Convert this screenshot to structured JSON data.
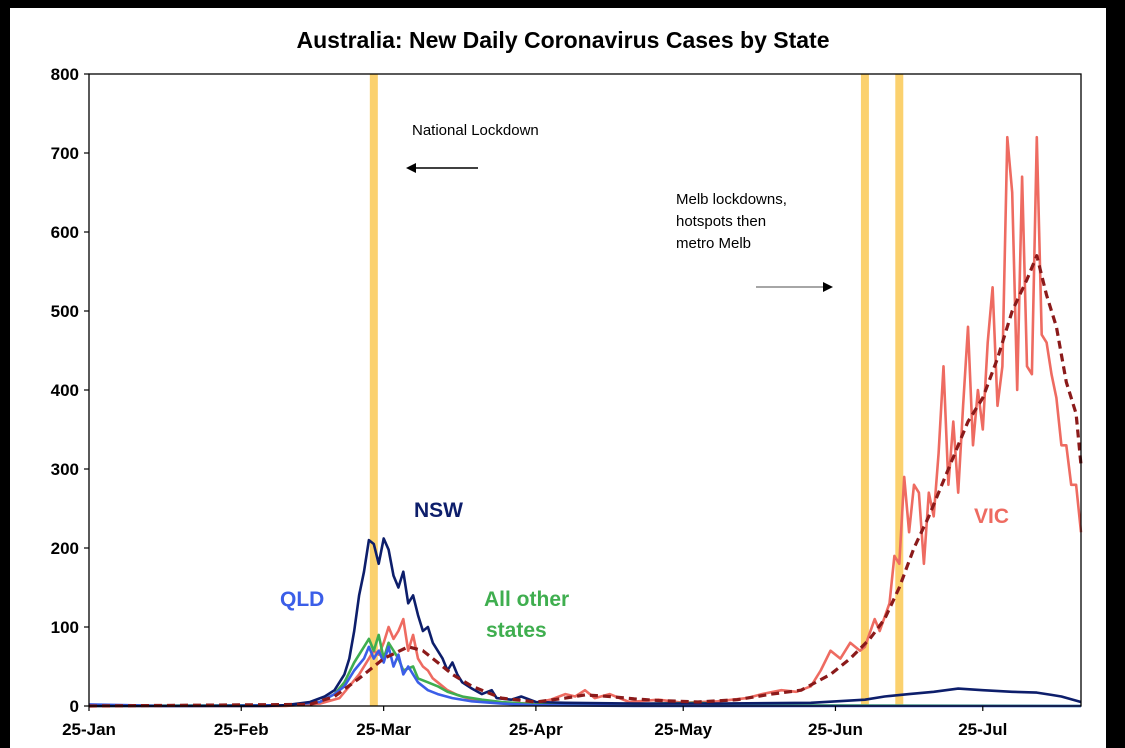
{
  "chart_data": {
    "type": "line",
    "title": "Australia: New Daily Coronavirus Cases by State",
    "xlabel": "",
    "ylabel": "",
    "x_ticks": [
      "25-Jan",
      "25-Feb",
      "25-Mar",
      "25-Apr",
      "25-May",
      "25-Jun",
      "25-Jul"
    ],
    "x_range": [
      "2020-01-25",
      "2020-08-14"
    ],
    "ylim": [
      0,
      800
    ],
    "y_ticks": [
      0,
      100,
      200,
      300,
      400,
      500,
      600,
      700,
      800
    ],
    "grid": false,
    "legend": "none (series labelled directly on chart)",
    "colors": {
      "NSW": "#0d1e6b",
      "VIC": "#ee6b61",
      "VIC_avg": "#8b1a1a",
      "QLD": "#3b5ee8",
      "All other states": "#3fae4f",
      "event_line": "#fbd16e"
    },
    "event_lines": [
      "2020-03-23",
      "2020-07-01",
      "2020-07-08"
    ],
    "annotations": [
      {
        "text": "National Lockdown",
        "arrow": "left"
      },
      {
        "text": "Melb lockdowns,",
        "arrow": "none"
      },
      {
        "text": "hotspots then",
        "arrow": "none"
      },
      {
        "text": "metro Melb",
        "arrow": "right"
      }
    ],
    "series_labels": [
      {
        "series": "NSW",
        "lines": [
          "NSW"
        ]
      },
      {
        "series": "QLD",
        "lines": [
          "QLD"
        ]
      },
      {
        "series": "All other states",
        "lines": [
          "All other",
          "states"
        ]
      },
      {
        "series": "VIC",
        "lines": [
          "VIC"
        ]
      }
    ],
    "series": [
      {
        "name": "NSW",
        "style": "solid",
        "points": [
          [
            "2020-01-25",
            0
          ],
          [
            "2020-03-01",
            0
          ],
          [
            "2020-03-05",
            1
          ],
          [
            "2020-03-10",
            5
          ],
          [
            "2020-03-13",
            12
          ],
          [
            "2020-03-15",
            20
          ],
          [
            "2020-03-17",
            40
          ],
          [
            "2020-03-18",
            60
          ],
          [
            "2020-03-19",
            95
          ],
          [
            "2020-03-20",
            140
          ],
          [
            "2020-03-21",
            170
          ],
          [
            "2020-03-22",
            210
          ],
          [
            "2020-03-23",
            205
          ],
          [
            "2020-03-24",
            180
          ],
          [
            "2020-03-25",
            212
          ],
          [
            "2020-03-26",
            198
          ],
          [
            "2020-03-27",
            165
          ],
          [
            "2020-03-28",
            150
          ],
          [
            "2020-03-29",
            170
          ],
          [
            "2020-03-30",
            130
          ],
          [
            "2020-03-31",
            140
          ],
          [
            "2020-04-01",
            115
          ],
          [
            "2020-04-02",
            95
          ],
          [
            "2020-04-03",
            100
          ],
          [
            "2020-04-04",
            80
          ],
          [
            "2020-04-05",
            70
          ],
          [
            "2020-04-06",
            60
          ],
          [
            "2020-04-07",
            45
          ],
          [
            "2020-04-08",
            55
          ],
          [
            "2020-04-09",
            40
          ],
          [
            "2020-04-10",
            30
          ],
          [
            "2020-04-12",
            22
          ],
          [
            "2020-04-14",
            15
          ],
          [
            "2020-04-16",
            20
          ],
          [
            "2020-04-17",
            10
          ],
          [
            "2020-04-20",
            8
          ],
          [
            "2020-04-22",
            12
          ],
          [
            "2020-04-25",
            5
          ],
          [
            "2020-05-01",
            4
          ],
          [
            "2020-05-15",
            3
          ],
          [
            "2020-06-01",
            3
          ],
          [
            "2020-06-20",
            4
          ],
          [
            "2020-07-01",
            8
          ],
          [
            "2020-07-05",
            12
          ],
          [
            "2020-07-10",
            15
          ],
          [
            "2020-07-15",
            18
          ],
          [
            "2020-07-20",
            22
          ],
          [
            "2020-07-25",
            20
          ],
          [
            "2020-07-31",
            18
          ],
          [
            "2020-08-05",
            17
          ],
          [
            "2020-08-08",
            14
          ],
          [
            "2020-08-10",
            12
          ],
          [
            "2020-08-14",
            5
          ]
        ]
      },
      {
        "name": "VIC",
        "style": "solid",
        "points": [
          [
            "2020-01-25",
            0
          ],
          [
            "2020-03-05",
            0
          ],
          [
            "2020-03-12",
            3
          ],
          [
            "2020-03-16",
            10
          ],
          [
            "2020-03-18",
            25
          ],
          [
            "2020-03-20",
            40
          ],
          [
            "2020-03-22",
            60
          ],
          [
            "2020-03-23",
            70
          ],
          [
            "2020-03-24",
            65
          ],
          [
            "2020-03-25",
            80
          ],
          [
            "2020-03-26",
            100
          ],
          [
            "2020-03-27",
            85
          ],
          [
            "2020-03-28",
            95
          ],
          [
            "2020-03-29",
            110
          ],
          [
            "2020-03-30",
            70
          ],
          [
            "2020-03-31",
            90
          ],
          [
            "2020-04-01",
            60
          ],
          [
            "2020-04-02",
            50
          ],
          [
            "2020-04-03",
            45
          ],
          [
            "2020-04-04",
            35
          ],
          [
            "2020-04-05",
            30
          ],
          [
            "2020-04-07",
            20
          ],
          [
            "2020-04-09",
            14
          ],
          [
            "2020-04-12",
            8
          ],
          [
            "2020-04-15",
            5
          ],
          [
            "2020-04-20",
            3
          ],
          [
            "2020-04-25",
            4
          ],
          [
            "2020-04-28",
            8
          ],
          [
            "2020-05-01",
            15
          ],
          [
            "2020-05-03",
            12
          ],
          [
            "2020-05-05",
            20
          ],
          [
            "2020-05-07",
            10
          ],
          [
            "2020-05-10",
            15
          ],
          [
            "2020-05-14",
            5
          ],
          [
            "2020-05-20",
            8
          ],
          [
            "2020-05-25",
            4
          ],
          [
            "2020-06-01",
            6
          ],
          [
            "2020-06-07",
            10
          ],
          [
            "2020-06-10",
            15
          ],
          [
            "2020-06-14",
            20
          ],
          [
            "2020-06-17",
            18
          ],
          [
            "2020-06-20",
            25
          ],
          [
            "2020-06-22",
            45
          ],
          [
            "2020-06-24",
            70
          ],
          [
            "2020-06-26",
            60
          ],
          [
            "2020-06-28",
            80
          ],
          [
            "2020-06-30",
            70
          ],
          [
            "2020-07-01",
            75
          ],
          [
            "2020-07-03",
            110
          ],
          [
            "2020-07-04",
            95
          ],
          [
            "2020-07-06",
            130
          ],
          [
            "2020-07-07",
            190
          ],
          [
            "2020-07-08",
            180
          ],
          [
            "2020-07-09",
            290
          ],
          [
            "2020-07-10",
            220
          ],
          [
            "2020-07-11",
            280
          ],
          [
            "2020-07-12",
            270
          ],
          [
            "2020-07-13",
            180
          ],
          [
            "2020-07-14",
            270
          ],
          [
            "2020-07-15",
            240
          ],
          [
            "2020-07-16",
            320
          ],
          [
            "2020-07-17",
            430
          ],
          [
            "2020-07-18",
            280
          ],
          [
            "2020-07-19",
            360
          ],
          [
            "2020-07-20",
            270
          ],
          [
            "2020-07-21",
            380
          ],
          [
            "2020-07-22",
            480
          ],
          [
            "2020-07-23",
            330
          ],
          [
            "2020-07-24",
            400
          ],
          [
            "2020-07-25",
            350
          ],
          [
            "2020-07-26",
            460
          ],
          [
            "2020-07-27",
            530
          ],
          [
            "2020-07-28",
            380
          ],
          [
            "2020-07-29",
            430
          ],
          [
            "2020-07-30",
            720
          ],
          [
            "2020-07-31",
            650
          ],
          [
            "2020-08-01",
            400
          ],
          [
            "2020-08-02",
            670
          ],
          [
            "2020-08-03",
            430
          ],
          [
            "2020-08-04",
            420
          ],
          [
            "2020-08-05",
            720
          ],
          [
            "2020-08-06",
            470
          ],
          [
            "2020-08-07",
            460
          ],
          [
            "2020-08-08",
            420
          ],
          [
            "2020-08-09",
            390
          ],
          [
            "2020-08-10",
            330
          ],
          [
            "2020-08-11",
            330
          ],
          [
            "2020-08-12",
            280
          ],
          [
            "2020-08-13",
            280
          ],
          [
            "2020-08-14",
            220
          ]
        ]
      },
      {
        "name": "VIC 7-day average",
        "style": "dashed",
        "points": [
          [
            "2020-01-25",
            0
          ],
          [
            "2020-03-10",
            2
          ],
          [
            "2020-03-15",
            12
          ],
          [
            "2020-03-20",
            35
          ],
          [
            "2020-03-25",
            60
          ],
          [
            "2020-03-30",
            75
          ],
          [
            "2020-04-02",
            70
          ],
          [
            "2020-04-05",
            55
          ],
          [
            "2020-04-08",
            40
          ],
          [
            "2020-04-12",
            25
          ],
          [
            "2020-04-18",
            10
          ],
          [
            "2020-04-25",
            5
          ],
          [
            "2020-05-01",
            10
          ],
          [
            "2020-05-05",
            14
          ],
          [
            "2020-05-10",
            12
          ],
          [
            "2020-05-15",
            9
          ],
          [
            "2020-05-20",
            7
          ],
          [
            "2020-05-28",
            5
          ],
          [
            "2020-06-05",
            8
          ],
          [
            "2020-06-12",
            15
          ],
          [
            "2020-06-18",
            20
          ],
          [
            "2020-06-24",
            40
          ],
          [
            "2020-06-28",
            60
          ],
          [
            "2020-07-02",
            85
          ],
          [
            "2020-07-05",
            110
          ],
          [
            "2020-07-08",
            150
          ],
          [
            "2020-07-11",
            200
          ],
          [
            "2020-07-14",
            240
          ],
          [
            "2020-07-18",
            300
          ],
          [
            "2020-07-22",
            360
          ],
          [
            "2020-07-25",
            390
          ],
          [
            "2020-07-28",
            440
          ],
          [
            "2020-07-31",
            500
          ],
          [
            "2020-08-03",
            540
          ],
          [
            "2020-08-05",
            570
          ],
          [
            "2020-08-07",
            520
          ],
          [
            "2020-08-09",
            480
          ],
          [
            "2020-08-11",
            410
          ],
          [
            "2020-08-13",
            370
          ],
          [
            "2020-08-14",
            305
          ]
        ]
      },
      {
        "name": "QLD",
        "style": "solid",
        "points": [
          [
            "2020-01-25",
            2
          ],
          [
            "2020-02-10",
            0
          ],
          [
            "2020-03-05",
            1
          ],
          [
            "2020-03-12",
            5
          ],
          [
            "2020-03-15",
            15
          ],
          [
            "2020-03-17",
            25
          ],
          [
            "2020-03-19",
            45
          ],
          [
            "2020-03-21",
            60
          ],
          [
            "2020-03-22",
            75
          ],
          [
            "2020-03-23",
            60
          ],
          [
            "2020-03-24",
            70
          ],
          [
            "2020-03-25",
            55
          ],
          [
            "2020-03-26",
            75
          ],
          [
            "2020-03-27",
            50
          ],
          [
            "2020-03-28",
            65
          ],
          [
            "2020-03-29",
            40
          ],
          [
            "2020-03-30",
            50
          ],
          [
            "2020-03-31",
            40
          ],
          [
            "2020-04-01",
            30
          ],
          [
            "2020-04-03",
            20
          ],
          [
            "2020-04-05",
            15
          ],
          [
            "2020-04-08",
            10
          ],
          [
            "2020-04-12",
            6
          ],
          [
            "2020-04-18",
            3
          ],
          [
            "2020-04-25",
            1
          ],
          [
            "2020-05-15",
            0
          ],
          [
            "2020-08-14",
            0
          ]
        ]
      },
      {
        "name": "All other states",
        "style": "solid",
        "points": [
          [
            "2020-01-25",
            0
          ],
          [
            "2020-03-05",
            1
          ],
          [
            "2020-03-12",
            5
          ],
          [
            "2020-03-15",
            15
          ],
          [
            "2020-03-17",
            30
          ],
          [
            "2020-03-19",
            55
          ],
          [
            "2020-03-21",
            75
          ],
          [
            "2020-03-22",
            85
          ],
          [
            "2020-03-23",
            70
          ],
          [
            "2020-03-24",
            90
          ],
          [
            "2020-03-25",
            60
          ],
          [
            "2020-03-26",
            80
          ],
          [
            "2020-03-27",
            70
          ],
          [
            "2020-03-28",
            60
          ],
          [
            "2020-03-29",
            45
          ],
          [
            "2020-03-31",
            50
          ],
          [
            "2020-04-01",
            35
          ],
          [
            "2020-04-03",
            30
          ],
          [
            "2020-04-05",
            25
          ],
          [
            "2020-04-07",
            18
          ],
          [
            "2020-04-10",
            12
          ],
          [
            "2020-04-14",
            8
          ],
          [
            "2020-04-18",
            5
          ],
          [
            "2020-04-25",
            2
          ],
          [
            "2020-05-05",
            1
          ],
          [
            "2020-05-20",
            3
          ],
          [
            "2020-05-28",
            4
          ],
          [
            "2020-06-05",
            1
          ],
          [
            "2020-08-14",
            0
          ]
        ]
      }
    ]
  }
}
